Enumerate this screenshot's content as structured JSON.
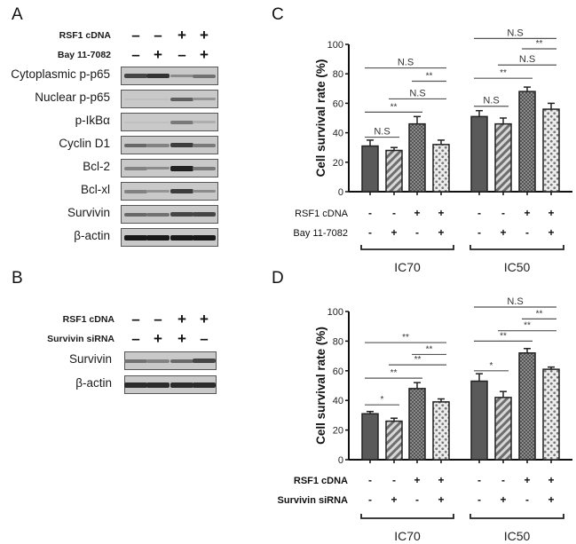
{
  "panels": {
    "A": {
      "letter": "A",
      "conditions": [
        {
          "label": "RSF1 cDNA",
          "signs": [
            "-",
            "-",
            "+",
            "+"
          ]
        },
        {
          "label": "Bay 11-7082",
          "signs": [
            "-",
            "+",
            "-",
            "+"
          ]
        }
      ],
      "blots": [
        {
          "label": "Cytoplasmic p-p65",
          "intensities": [
            0.75,
            0.85,
            0.35,
            0.5
          ]
        },
        {
          "label": "Nuclear p-p65",
          "intensities": [
            0.05,
            0.05,
            0.6,
            0.3
          ]
        },
        {
          "label": "p-IkBα",
          "intensities": [
            0.05,
            0.05,
            0.45,
            0.15
          ]
        },
        {
          "label": "Cyclin D1",
          "intensities": [
            0.55,
            0.4,
            0.8,
            0.45
          ]
        },
        {
          "label": "Bcl-2",
          "intensities": [
            0.4,
            0.35,
            0.95,
            0.45
          ]
        },
        {
          "label": "Bcl-xl",
          "intensities": [
            0.4,
            0.3,
            0.8,
            0.35
          ]
        },
        {
          "label": "Survivin",
          "intensities": [
            0.55,
            0.5,
            0.75,
            0.75
          ]
        },
        {
          "label": "β-actin",
          "intensities": [
            1.0,
            1.0,
            1.0,
            1.0
          ]
        }
      ]
    },
    "B": {
      "letter": "B",
      "conditions": [
        {
          "label": "RSF1 cDNA",
          "signs": [
            "-",
            "-",
            "+",
            "+"
          ]
        },
        {
          "label": "Survivin siRNA",
          "signs": [
            "-",
            "+",
            "+",
            "-"
          ]
        }
      ],
      "blots": [
        {
          "label": "Survivin",
          "intensities": [
            0.5,
            0.4,
            0.55,
            0.75
          ]
        },
        {
          "label": "β-actin",
          "intensities": [
            0.9,
            0.9,
            0.9,
            0.9
          ]
        }
      ]
    },
    "C": {
      "letter": "C"
    },
    "D": {
      "letter": "D"
    }
  },
  "chart_data": [
    {
      "panel": "C",
      "type": "bar",
      "ylabel": "Cell survival rate (%)",
      "ylim": [
        0,
        100
      ],
      "yticks": [
        0,
        20,
        40,
        60,
        80,
        100
      ],
      "groups": [
        "IC70",
        "IC50"
      ],
      "condition_rows": [
        {
          "label": "RSF1 cDNA",
          "signs": [
            "-",
            "-",
            "+",
            "+",
            "-",
            "-",
            "+",
            "+"
          ]
        },
        {
          "label": "Bay 11-7082",
          "signs": [
            "-",
            "+",
            "-",
            "+",
            "-",
            "+",
            "-",
            "+"
          ]
        }
      ],
      "values": [
        31,
        28,
        46,
        32,
        51,
        46,
        68,
        56
      ],
      "errors": [
        4,
        2,
        5,
        3,
        4,
        4,
        3,
        4
      ],
      "patterns": [
        "solid",
        "stripe",
        "check",
        "dots",
        "solid",
        "stripe",
        "check",
        "dots"
      ],
      "annotations": [
        {
          "from": 0,
          "to": 1,
          "y": 37,
          "text": "N.S"
        },
        {
          "from": 0,
          "to": 2,
          "y": 54,
          "text": "**"
        },
        {
          "from": 1,
          "to": 3,
          "y": 63,
          "text": "N.S"
        },
        {
          "from": 2,
          "to": 3,
          "y": 75,
          "text": "**"
        },
        {
          "from": 0,
          "to": 3,
          "y": 84,
          "text": "N.S"
        },
        {
          "from": 4,
          "to": 5,
          "y": 58,
          "text": "N.S"
        },
        {
          "from": 4,
          "to": 6,
          "y": 77,
          "text": "**"
        },
        {
          "from": 5,
          "to": 7,
          "y": 86,
          "text": "N.S"
        },
        {
          "from": 6,
          "to": 7,
          "y": 97,
          "text": "**"
        },
        {
          "from": 4,
          "to": 7,
          "y": 104,
          "text": "N.S"
        }
      ]
    },
    {
      "panel": "D",
      "type": "bar",
      "ylabel": "Cell survival rate (%)",
      "ylim": [
        0,
        100
      ],
      "yticks": [
        0,
        20,
        40,
        60,
        80,
        100
      ],
      "groups": [
        "IC70",
        "IC50"
      ],
      "condition_rows": [
        {
          "label": "RSF1 cDNA",
          "signs": [
            "-",
            "-",
            "+",
            "+",
            "-",
            "-",
            "+",
            "+"
          ]
        },
        {
          "label": "Survivin siRNA",
          "signs": [
            "-",
            "+",
            "-",
            "+",
            "-",
            "+",
            "-",
            "+"
          ]
        }
      ],
      "values": [
        31,
        26,
        48,
        39,
        53,
        42,
        72,
        61
      ],
      "errors": [
        1.5,
        2,
        4,
        2,
        5,
        4,
        3,
        1.5
      ],
      "patterns": [
        "solid",
        "stripe",
        "check",
        "dots",
        "solid",
        "stripe",
        "check",
        "dots"
      ],
      "annotations": [
        {
          "from": 0,
          "to": 1,
          "y": 37,
          "text": "*"
        },
        {
          "from": 0,
          "to": 2,
          "y": 55,
          "text": "**"
        },
        {
          "from": 1,
          "to": 3,
          "y": 64,
          "text": "**"
        },
        {
          "from": 2,
          "to": 3,
          "y": 71,
          "text": "**"
        },
        {
          "from": 0,
          "to": 3,
          "y": 79,
          "text": "**"
        },
        {
          "from": 4,
          "to": 5,
          "y": 60,
          "text": "*"
        },
        {
          "from": 4,
          "to": 6,
          "y": 80,
          "text": "**"
        },
        {
          "from": 5,
          "to": 7,
          "y": 87,
          "text": "**"
        },
        {
          "from": 6,
          "to": 7,
          "y": 95,
          "text": "**"
        },
        {
          "from": 4,
          "to": 7,
          "y": 103,
          "text": "N.S"
        }
      ]
    }
  ]
}
